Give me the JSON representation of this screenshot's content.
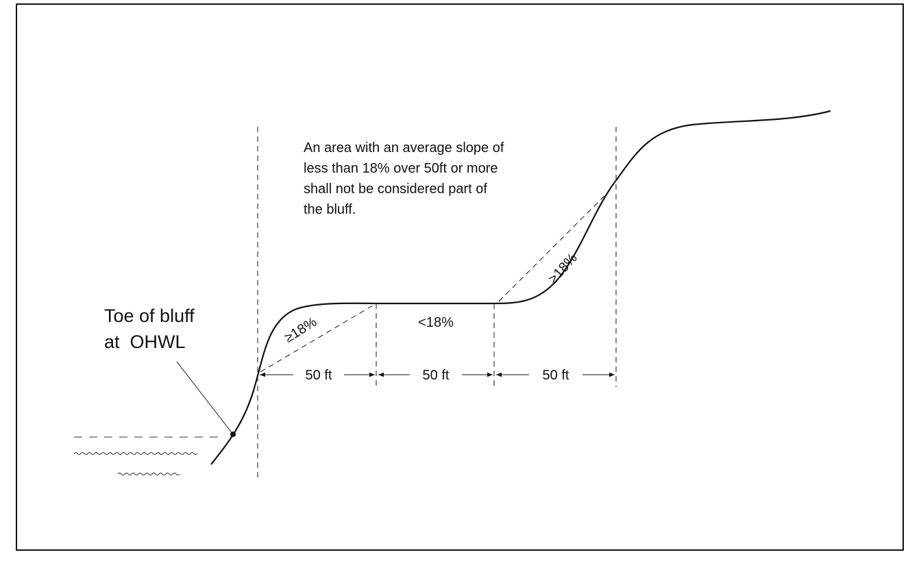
{
  "callout": {
    "lines": [
      "Toe of bluff",
      "at  OHWL"
    ]
  },
  "note": {
    "lines": [
      "An area with an average slope of",
      "less than 18% over 50ft or more",
      "shall not be considered part of",
      "the bluff."
    ]
  },
  "slope_labels": [
    "≥18%",
    "<18%",
    "≥18%"
  ],
  "dimensions": [
    "50 ft",
    "50 ft",
    "50 ft"
  ]
}
